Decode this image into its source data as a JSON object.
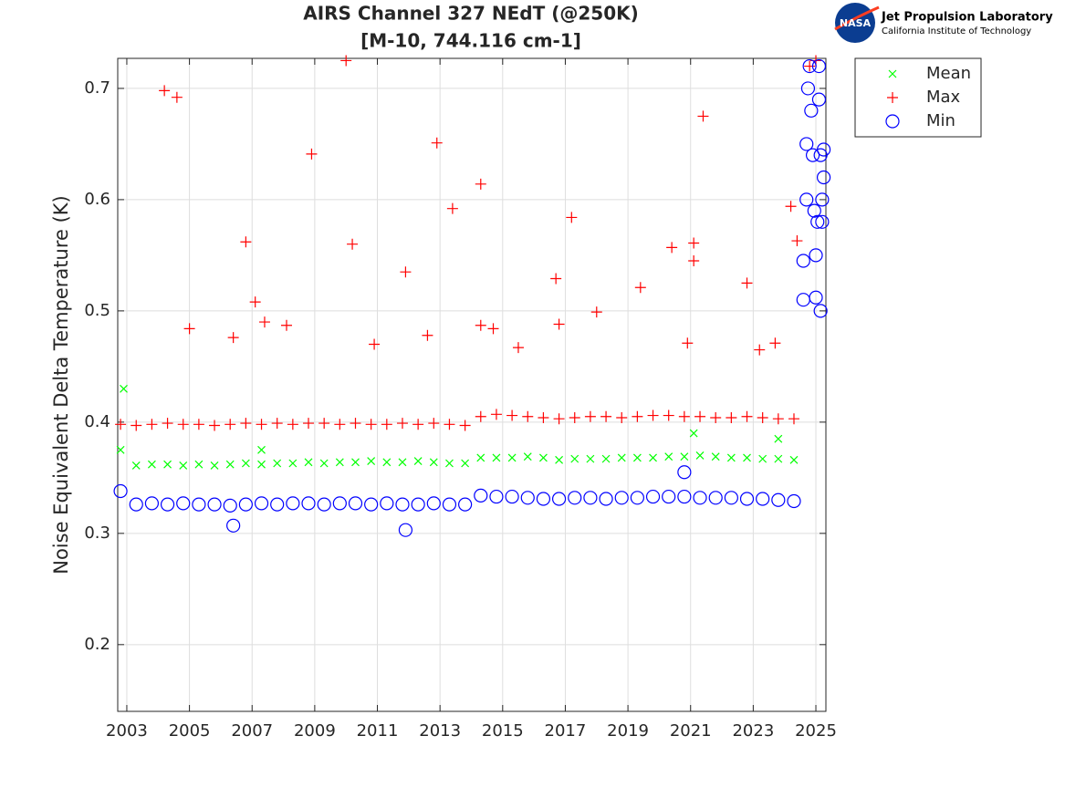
{
  "chart_data": {
    "type": "scatter",
    "title": "AIRS Channel 327 NEdT (@250K)",
    "subtitle": "[M-10, 744.116 cm-1]",
    "y_label": "Noise Equivalent Delta Temperature (K)",
    "xlim": [
      2002.71,
      2025.32
    ],
    "xticks": [
      2003,
      2005,
      2007,
      2009,
      2011,
      2013,
      2015,
      2017,
      2019,
      2021,
      2023,
      2025
    ],
    "ylim": [
      0.14,
      0.727
    ],
    "yticks": [
      0.2,
      0.3,
      0.4,
      0.5,
      0.6,
      0.7
    ],
    "grid": true,
    "legend": "outside-right",
    "series": [
      {
        "name": "Mean",
        "color": "#00ff00",
        "marker": "x",
        "x": [
          2002.8,
          2003.3,
          2003.8,
          2004.3,
          2004.8,
          2005.3,
          2005.8,
          2006.3,
          2006.8,
          2007.3,
          2007.8,
          2008.3,
          2008.8,
          2009.3,
          2009.8,
          2010.3,
          2010.8,
          2011.3,
          2011.8,
          2012.3,
          2012.8,
          2013.3,
          2013.8,
          2014.3,
          2014.8,
          2015.3,
          2015.8,
          2016.3,
          2016.8,
          2017.3,
          2017.8,
          2018.3,
          2018.8,
          2019.3,
          2019.8,
          2020.3,
          2020.8,
          2021.3,
          2021.8,
          2022.3,
          2022.8,
          2023.3,
          2023.8,
          2024.3,
          2002.9,
          2007.3,
          2021.1,
          2023.8
        ],
        "values": [
          0.375,
          0.361,
          0.362,
          0.362,
          0.361,
          0.362,
          0.361,
          0.362,
          0.363,
          0.362,
          0.363,
          0.363,
          0.364,
          0.363,
          0.364,
          0.364,
          0.365,
          0.364,
          0.364,
          0.365,
          0.364,
          0.363,
          0.363,
          0.368,
          0.368,
          0.368,
          0.369,
          0.368,
          0.366,
          0.367,
          0.367,
          0.367,
          0.368,
          0.368,
          0.368,
          0.369,
          0.369,
          0.37,
          0.369,
          0.368,
          0.368,
          0.367,
          0.367,
          0.366,
          0.43,
          0.375,
          0.39,
          0.385
        ]
      },
      {
        "name": "Max",
        "color": "#ff0000",
        "marker": "+",
        "x": [
          2002.8,
          2003.3,
          2003.8,
          2004.3,
          2004.8,
          2005.3,
          2005.8,
          2006.3,
          2006.8,
          2007.3,
          2007.8,
          2008.3,
          2008.8,
          2009.3,
          2009.8,
          2010.3,
          2010.8,
          2011.3,
          2011.8,
          2012.3,
          2012.8,
          2013.3,
          2013.8,
          2014.3,
          2014.8,
          2015.3,
          2015.8,
          2016.3,
          2016.8,
          2017.3,
          2017.8,
          2018.3,
          2018.8,
          2019.3,
          2019.8,
          2020.3,
          2020.8,
          2021.3,
          2021.8,
          2022.3,
          2022.8,
          2023.3,
          2023.8,
          2024.3,
          2004.2,
          2004.6,
          2005.0,
          2006.4,
          2006.8,
          2007.1,
          2007.4,
          2008.1,
          2008.9,
          2010.0,
          2010.2,
          2010.9,
          2011.9,
          2012.6,
          2012.9,
          2013.4,
          2014.3,
          2014.3,
          2014.7,
          2015.5,
          2016.7,
          2016.8,
          2017.2,
          2018.0,
          2019.4,
          2020.4,
          2020.9,
          2021.1,
          2021.1,
          2021.4,
          2022.8,
          2023.2,
          2023.7,
          2024.2,
          2024.4,
          2024.8,
          2025.0
        ],
        "values": [
          0.398,
          0.397,
          0.398,
          0.399,
          0.398,
          0.398,
          0.397,
          0.398,
          0.399,
          0.398,
          0.399,
          0.398,
          0.399,
          0.399,
          0.398,
          0.399,
          0.398,
          0.398,
          0.399,
          0.398,
          0.399,
          0.398,
          0.397,
          0.405,
          0.407,
          0.406,
          0.405,
          0.404,
          0.403,
          0.404,
          0.405,
          0.405,
          0.404,
          0.405,
          0.406,
          0.406,
          0.405,
          0.405,
          0.404,
          0.404,
          0.405,
          0.404,
          0.403,
          0.403,
          0.698,
          0.692,
          0.484,
          0.476,
          0.562,
          0.508,
          0.49,
          0.487,
          0.641,
          0.725,
          0.56,
          0.47,
          0.535,
          0.478,
          0.651,
          0.592,
          0.614,
          0.487,
          0.484,
          0.467,
          0.529,
          0.488,
          0.584,
          0.499,
          0.521,
          0.557,
          0.471,
          0.561,
          0.545,
          0.675,
          0.525,
          0.465,
          0.471,
          0.594,
          0.563,
          0.72,
          0.725
        ]
      },
      {
        "name": "Min",
        "color": "#0000ff",
        "marker": "o",
        "x": [
          2002.8,
          2003.3,
          2003.8,
          2004.3,
          2004.8,
          2005.3,
          2005.8,
          2006.3,
          2006.8,
          2007.3,
          2007.8,
          2008.3,
          2008.8,
          2009.3,
          2009.8,
          2010.3,
          2010.8,
          2011.3,
          2011.8,
          2012.3,
          2012.8,
          2013.3,
          2013.8,
          2014.3,
          2014.8,
          2015.3,
          2015.8,
          2016.3,
          2016.8,
          2017.3,
          2017.8,
          2018.3,
          2018.8,
          2019.3,
          2019.8,
          2020.3,
          2020.8,
          2021.3,
          2021.8,
          2022.3,
          2022.8,
          2023.3,
          2023.8,
          2024.3,
          2011.9,
          2006.4,
          2020.8,
          2024.6,
          2024.6,
          2024.7,
          2024.7,
          2024.75,
          2024.8,
          2024.85,
          2024.9,
          2024.95,
          2025.0,
          2025.0,
          2025.05,
          2025.1,
          2025.1,
          2025.15,
          2025.15,
          2025.2,
          2025.2,
          2025.25,
          2025.25
        ],
        "values": [
          0.338,
          0.326,
          0.327,
          0.326,
          0.327,
          0.326,
          0.326,
          0.325,
          0.326,
          0.327,
          0.326,
          0.327,
          0.327,
          0.326,
          0.327,
          0.327,
          0.326,
          0.327,
          0.326,
          0.326,
          0.327,
          0.326,
          0.326,
          0.334,
          0.333,
          0.333,
          0.332,
          0.331,
          0.331,
          0.332,
          0.332,
          0.331,
          0.332,
          0.332,
          0.333,
          0.333,
          0.333,
          0.332,
          0.332,
          0.332,
          0.331,
          0.331,
          0.33,
          0.329,
          0.303,
          0.307,
          0.355,
          0.51,
          0.545,
          0.6,
          0.65,
          0.7,
          0.72,
          0.68,
          0.64,
          0.59,
          0.55,
          0.512,
          0.58,
          0.72,
          0.69,
          0.5,
          0.64,
          0.6,
          0.58,
          0.62,
          0.645
        ]
      }
    ]
  },
  "logo": {
    "nasa": "NASA",
    "name": "Jet Propulsion Laboratory",
    "institution": "California Institute of Technology"
  }
}
